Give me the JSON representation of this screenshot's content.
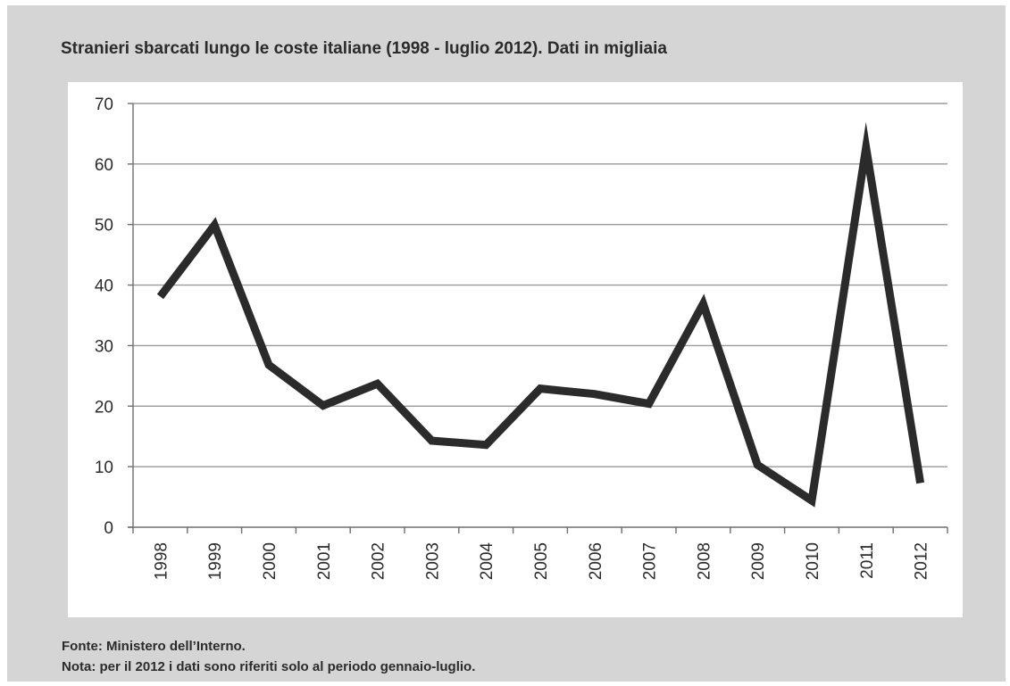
{
  "chart_data": {
    "type": "line",
    "title": "Stranieri sbarcati lungo le coste italiane (1998 - luglio 2012). Dati in migliaia",
    "xlabel": "",
    "ylabel": "",
    "categories": [
      "1998",
      "1999",
      "2000",
      "2001",
      "2002",
      "2003",
      "2004",
      "2005",
      "2006",
      "2007",
      "2008",
      "2009",
      "2010",
      "2011",
      "2012"
    ],
    "series": [
      {
        "values": [
          38.1,
          49.9,
          26.8,
          20.1,
          23.7,
          14.3,
          13.6,
          22.9,
          22.0,
          20.4,
          36.9,
          10.3,
          4.4,
          62.7,
          7.3
        ]
      }
    ],
    "ylim": [
      0,
      70
    ],
    "yticks": [
      "0",
      "10",
      "20",
      "30",
      "40",
      "50",
      "60",
      "70"
    ],
    "grid": "horizontal",
    "line_color": "#2b2b2b"
  },
  "footer": {
    "source": "Fonte: Ministero dell’Interno.",
    "note": "Nota: per il 2012 i dati sono riferiti solo al periodo gennaio-luglio."
  }
}
